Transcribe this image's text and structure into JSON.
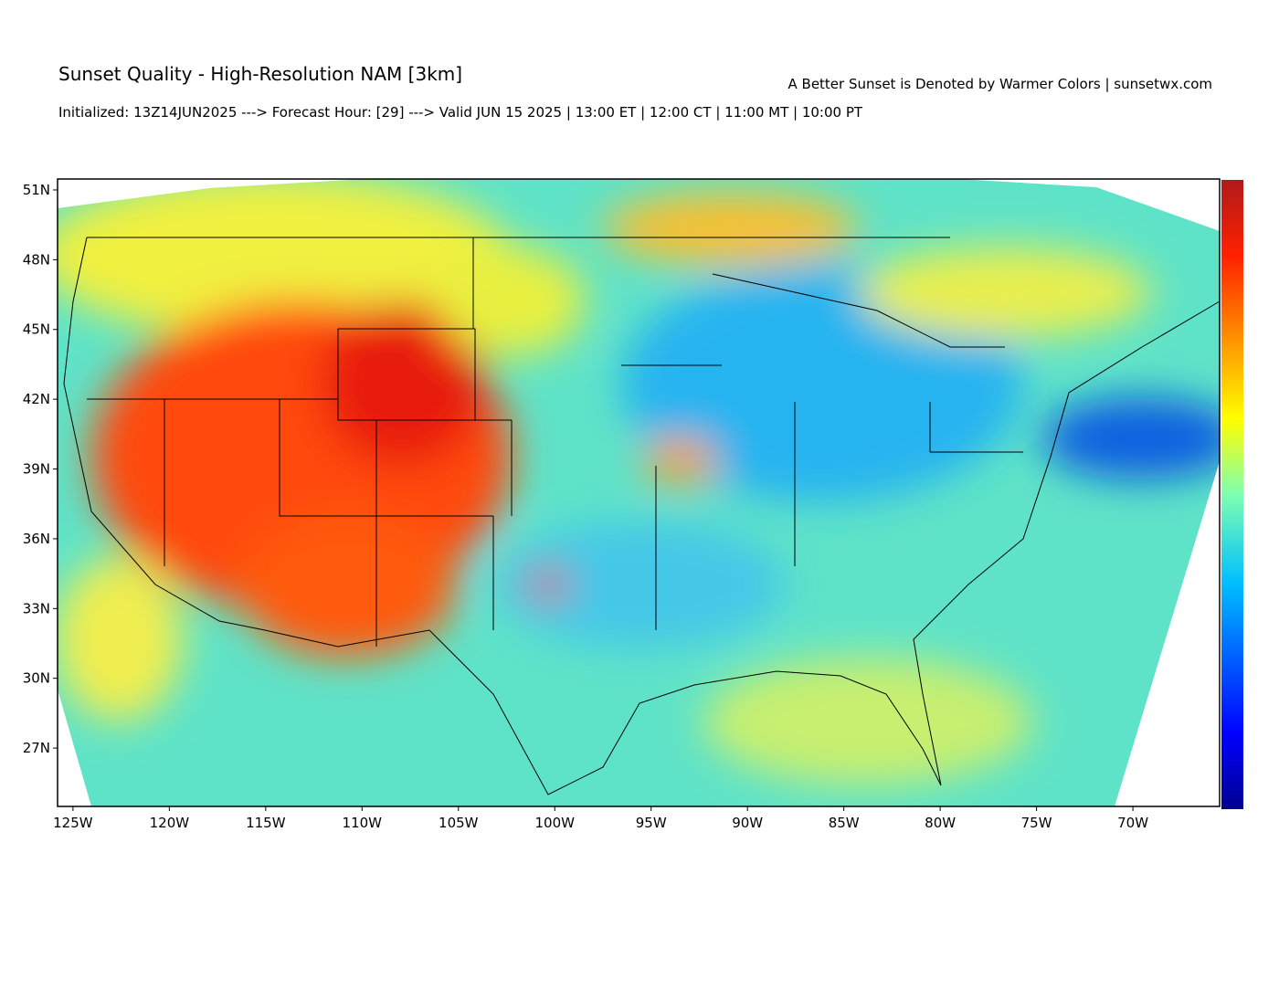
{
  "chart_data": {
    "type": "map",
    "title": "Sunset Quality - High-Resolution NAM [3km]",
    "subtitle": "A Better Sunset is Denoted by Warmer Colors | sunsetwx.com",
    "caption": "Initialized: 13Z14JUN2025 ---> Forecast Hour: [29] ---> Valid JUN 15 2025 | 13:00 ET | 12:00 CT | 11:00 MT | 10:00 PT",
    "xlim": [
      -125.8,
      -65.5
    ],
    "ylim": [
      24.49,
      51.47
    ],
    "xticks": [
      {
        "value": -125,
        "label": "125W"
      },
      {
        "value": -120,
        "label": "120W"
      },
      {
        "value": -115,
        "label": "115W"
      },
      {
        "value": -110,
        "label": "110W"
      },
      {
        "value": -105,
        "label": "105W"
      },
      {
        "value": -100,
        "label": "100W"
      },
      {
        "value": -95,
        "label": "95W"
      },
      {
        "value": -90,
        "label": "90W"
      },
      {
        "value": -85,
        "label": "85W"
      },
      {
        "value": -80,
        "label": "80W"
      },
      {
        "value": -75,
        "label": "75W"
      },
      {
        "value": -70,
        "label": "70W"
      }
    ],
    "yticks": [
      {
        "value": 27,
        "label": "27N"
      },
      {
        "value": 30,
        "label": "30N"
      },
      {
        "value": 33,
        "label": "33N"
      },
      {
        "value": 36,
        "label": "36N"
      },
      {
        "value": 39,
        "label": "39N"
      },
      {
        "value": 42,
        "label": "42N"
      },
      {
        "value": 45,
        "label": "45N"
      },
      {
        "value": 48,
        "label": "48N"
      },
      {
        "value": 51,
        "label": "51N"
      }
    ]
  }
}
